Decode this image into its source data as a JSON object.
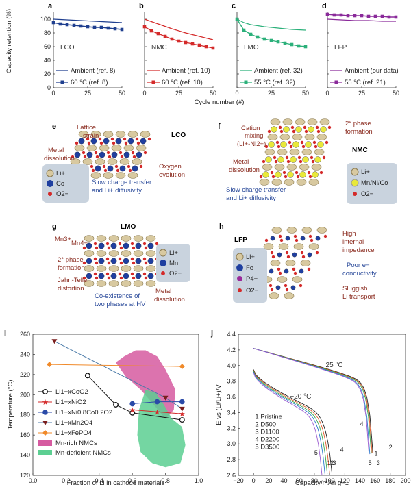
{
  "colors": {
    "lco": "#1f3f8f",
    "nmc": "#d42a2a",
    "lmo": "#2bb07a",
    "lfp": "#8a2a9a",
    "bg_key": "#c9d3de",
    "ann_red": "#8a2a1e",
    "ann_blue": "#2a4a9a"
  },
  "top": {
    "ylabel": "Capacity retention (%)",
    "xlabel": "Cycle number (#)",
    "yticks": [
      "0",
      "20",
      "40",
      "60",
      "80",
      "100"
    ],
    "xticks": [
      "0",
      "25",
      "50"
    ]
  },
  "chart_data": [
    {
      "id": "a",
      "type": "line",
      "material": "LCO",
      "xlim": [
        0,
        50
      ],
      "ylim": [
        0,
        110
      ],
      "series": [
        {
          "name": "Ambient (ref. 8)",
          "style": "line",
          "x": [
            0,
            10,
            20,
            30,
            40,
            50
          ],
          "y": [
            100,
            99,
            98,
            97,
            96,
            95
          ]
        },
        {
          "name": "60 °C (ref. 8)",
          "style": "marker",
          "x": [
            0,
            5,
            10,
            15,
            20,
            25,
            30,
            35,
            40,
            45,
            50
          ],
          "y": [
            95,
            93,
            92,
            91,
            90,
            89,
            88,
            88,
            87,
            86,
            85
          ]
        }
      ]
    },
    {
      "id": "b",
      "type": "line",
      "material": "NMC",
      "xlim": [
        0,
        50
      ],
      "ylim": [
        0,
        110
      ],
      "series": [
        {
          "name": "Ambient (ref. 10)",
          "style": "line",
          "x": [
            0,
            10,
            20,
            30,
            40,
            50
          ],
          "y": [
            100,
            93,
            86,
            80,
            75,
            70
          ]
        },
        {
          "name": "60 °C (ref. 10)",
          "style": "marker",
          "x": [
            0,
            5,
            10,
            15,
            20,
            25,
            30,
            35,
            40,
            45,
            50
          ],
          "y": [
            89,
            83,
            79,
            75,
            71,
            68,
            66,
            64,
            62,
            60,
            58
          ]
        }
      ]
    },
    {
      "id": "c",
      "type": "line",
      "material": "LMO",
      "xlim": [
        0,
        50
      ],
      "ylim": [
        0,
        110
      ],
      "series": [
        {
          "name": "Ambient (ref. 32)",
          "style": "line",
          "x": [
            0,
            5,
            10,
            20,
            30,
            40,
            50
          ],
          "y": [
            100,
            95,
            92,
            89,
            87,
            85,
            84
          ]
        },
        {
          "name": "55 °C (ref. 32)",
          "style": "marker",
          "x": [
            0,
            5,
            10,
            15,
            20,
            25,
            30,
            35,
            40,
            45,
            50
          ],
          "y": [
            100,
            84,
            78,
            74,
            71,
            69,
            67,
            65,
            63,
            61,
            60
          ]
        }
      ]
    },
    {
      "id": "d",
      "type": "line",
      "material": "LFP",
      "xlim": [
        0,
        50
      ],
      "ylim": [
        0,
        110
      ],
      "series": [
        {
          "name": "Ambient (our data)",
          "style": "line",
          "x": [
            0,
            10,
            20,
            30,
            40,
            50
          ],
          "y": [
            100,
            99,
            98,
            98,
            97,
            97
          ]
        },
        {
          "name": "55 °C (ref. 21)",
          "style": "marker",
          "x": [
            0,
            5,
            10,
            15,
            20,
            25,
            30,
            35,
            40,
            45,
            50
          ],
          "y": [
            107,
            106,
            106,
            105,
            105,
            105,
            104,
            104,
            104,
            103,
            103
          ]
        }
      ]
    },
    {
      "id": "i",
      "type": "line",
      "xlabel": "Fraction of Li in cathode materials",
      "ylabel": "Temperature (°C)",
      "xlim": [
        0,
        1.0
      ],
      "ylim": [
        120,
        260
      ],
      "xticks": [
        "0.0",
        "0.2",
        "0.4",
        "0.6",
        "0.8",
        "1.0"
      ],
      "yticks": [
        "120",
        "140",
        "160",
        "180",
        "200",
        "220",
        "240",
        "260"
      ],
      "series": [
        {
          "name": "Li1−xCoO2",
          "x": [
            0.33,
            0.5,
            0.6,
            0.9
          ],
          "y": [
            219,
            190,
            182,
            175
          ]
        },
        {
          "name": "Li1−xNiO2",
          "x": [
            0.6,
            0.75,
            0.9
          ],
          "y": [
            185,
            183,
            181
          ]
        },
        {
          "name": "Li1−xNi0.8Co0.2O2",
          "x": [
            0.6,
            0.75,
            0.9
          ],
          "y": [
            191,
            193,
            193
          ]
        },
        {
          "name": "Li1−xMn2O4",
          "x": [
            0.13,
            0.8,
            0.9
          ],
          "y": [
            253,
            197,
            186
          ]
        },
        {
          "name": "Li1−xFePO4",
          "x": [
            0.1,
            0.9
          ],
          "y": [
            230,
            228
          ]
        }
      ],
      "regions": [
        {
          "name": "Mn-rich NMCs"
        },
        {
          "name": "Mn-deficient NMCs"
        }
      ]
    },
    {
      "id": "j",
      "type": "line",
      "xlabel": "Capacity/mAh g−1",
      "ylabel": "E vs (Li/Li+)/V",
      "xlim": [
        -20,
        200
      ],
      "ylim": [
        2.6,
        4.4
      ],
      "xticks": [
        "−20",
        "0",
        "20",
        "40",
        "60",
        "80",
        "100",
        "120",
        "140",
        "160",
        "180",
        "200"
      ],
      "yticks": [
        "2.6",
        "2.8",
        "3.0",
        "3.2",
        "3.4",
        "3.6",
        "3.8",
        "4.0",
        "4.2",
        "4.4"
      ],
      "temps": [
        "25 °C",
        "−20 °C"
      ],
      "series": [
        {
          "name": "1 Pristine",
          "cap25": 157,
          "capm20": 103
        },
        {
          "name": "2 D500",
          "cap25": 156,
          "capm20": 100
        },
        {
          "name": "3 D1100",
          "cap25": 155,
          "capm20": 97
        },
        {
          "name": "4 D2200",
          "cap25": 153,
          "capm20": 94
        },
        {
          "name": "5 D3500",
          "cap25": 152,
          "capm20": 90
        }
      ],
      "curve_colors": [
        "#222",
        "#e05a28",
        "#3aa84a",
        "#2a7acc",
        "#9a5ad0"
      ]
    }
  ],
  "panel_letters": [
    "a",
    "b",
    "c",
    "d",
    "e",
    "f",
    "g",
    "h",
    "i",
    "j"
  ],
  "schematics": {
    "e": {
      "letter": "e",
      "title": "LCO",
      "ann": [
        "Lattice",
        "strain",
        "Metal",
        "dissolution",
        "Oxygen",
        "evolution",
        "Slow charge transfer",
        "and Li+ diffusivity"
      ],
      "key": [
        "Li+",
        "Co",
        "O2−"
      ]
    },
    "f": {
      "letter": "f",
      "title": "NMC",
      "ann": [
        "Cation",
        "mixing",
        "(Li+-Ni2+)",
        "2° phase",
        "formation",
        "Metal",
        "dissolution",
        "Slow charge transfer",
        "and Li+ diffusivity"
      ],
      "key": [
        "Li+",
        "Mn/Ni/Co",
        "O2−"
      ]
    },
    "g": {
      "letter": "g",
      "title": "LMO",
      "ann": [
        "Mn3+",
        "Mn4+",
        "2° phase",
        "formation",
        "Jahn-Teller",
        "distortion",
        "Co-existence of",
        "two phases at HV",
        "Metal",
        "dissolution"
      ],
      "key": [
        "Li+",
        "Mn",
        "O2−"
      ]
    },
    "h": {
      "letter": "h",
      "title": "LFP",
      "ann": [
        "High",
        "internal",
        "impedance",
        "Poor e−",
        "conductivity",
        "Sluggish",
        "Li transport"
      ],
      "key": [
        "Li+",
        "Fe",
        "P4+",
        "O2−"
      ]
    }
  }
}
